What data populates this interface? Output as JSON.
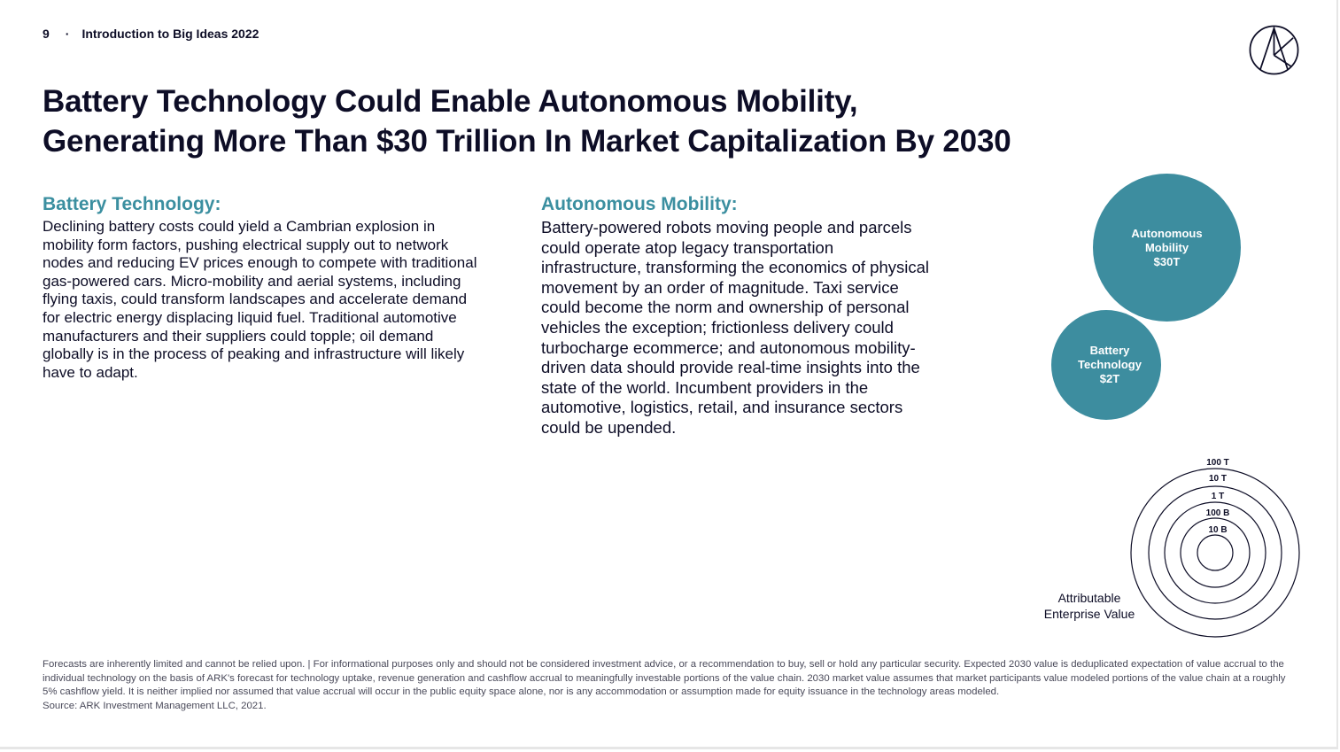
{
  "header": {
    "page_number": "9",
    "separator": "·",
    "section": "Introduction to Big Ideas 2022"
  },
  "title": {
    "line1": "Battery Technology Could Enable Autonomous Mobility,",
    "line2": "Generating More Than $30 Trillion In Market Capitalization By 2030"
  },
  "battery": {
    "heading": "Battery Technology:",
    "body": "Declining battery costs could yield a Cambrian explosion in mobility form factors, pushing electrical supply out to network nodes and reducing EV prices enough to compete with traditional gas-powered cars.  Micro-mobility and aerial systems, including flying taxis, could transform landscapes and accelerate demand for electric energy displacing liquid fuel. Traditional automotive manufacturers and their suppliers could topple; oil demand globally is in the process of peaking and infrastructure will likely have to adapt."
  },
  "autonomous": {
    "heading": "Autonomous Mobility:",
    "body": "Battery-powered robots moving people and parcels could operate atop legacy transportation infrastructure, transforming the economics of physical movement by an order of magnitude. Taxi service could become the norm and ownership of personal vehicles the exception; frictionless delivery could turbocharge ecommerce; and autonomous mobility-driven data should provide real-time insights into the state of the world. Incumbent providers in the automotive, logistics, retail, and insurance sectors could be upended."
  },
  "bubbles": {
    "autonomous": {
      "line1": "Autonomous",
      "line2": "Mobility",
      "value": "$30T"
    },
    "battery": {
      "line1": "Battery",
      "line2": "Technology",
      "value": "$2T"
    }
  },
  "legend": {
    "rings": [
      "100 T",
      "10 T",
      "1 T",
      "100 B",
      "10 B"
    ],
    "caption_line1": "Attributable",
    "caption_line2": "Enterprise Value"
  },
  "footnote": {
    "disclaimer": "Forecasts are inherently limited and cannot be relied upon. | For informational purposes only and should not be considered investment advice, or a recommendation to buy, sell or hold any particular security. Expected 2030 value is deduplicated expectation of value accrual to the individual technology on the basis of ARK's forecast for technology uptake, revenue generation and cashflow accrual to meaningfully investable portions of the value chain. 2030 market value assumes that market participants value modeled portions of the value chain at a  roughly 5% cashflow yield. It is neither implied nor assumed that value accrual will occur in the public equity space alone, nor is any accommodation or assumption made for equity issuance in the technology areas modeled.",
    "source": "Source: ARK Investment Management LLC, 2021."
  },
  "colors": {
    "accent_teal": "#3b8fa0",
    "bubble_teal": "#3d8d9f",
    "text_dark": "#0d0d26"
  },
  "icons": {
    "logo": "ark-logo-icon"
  }
}
